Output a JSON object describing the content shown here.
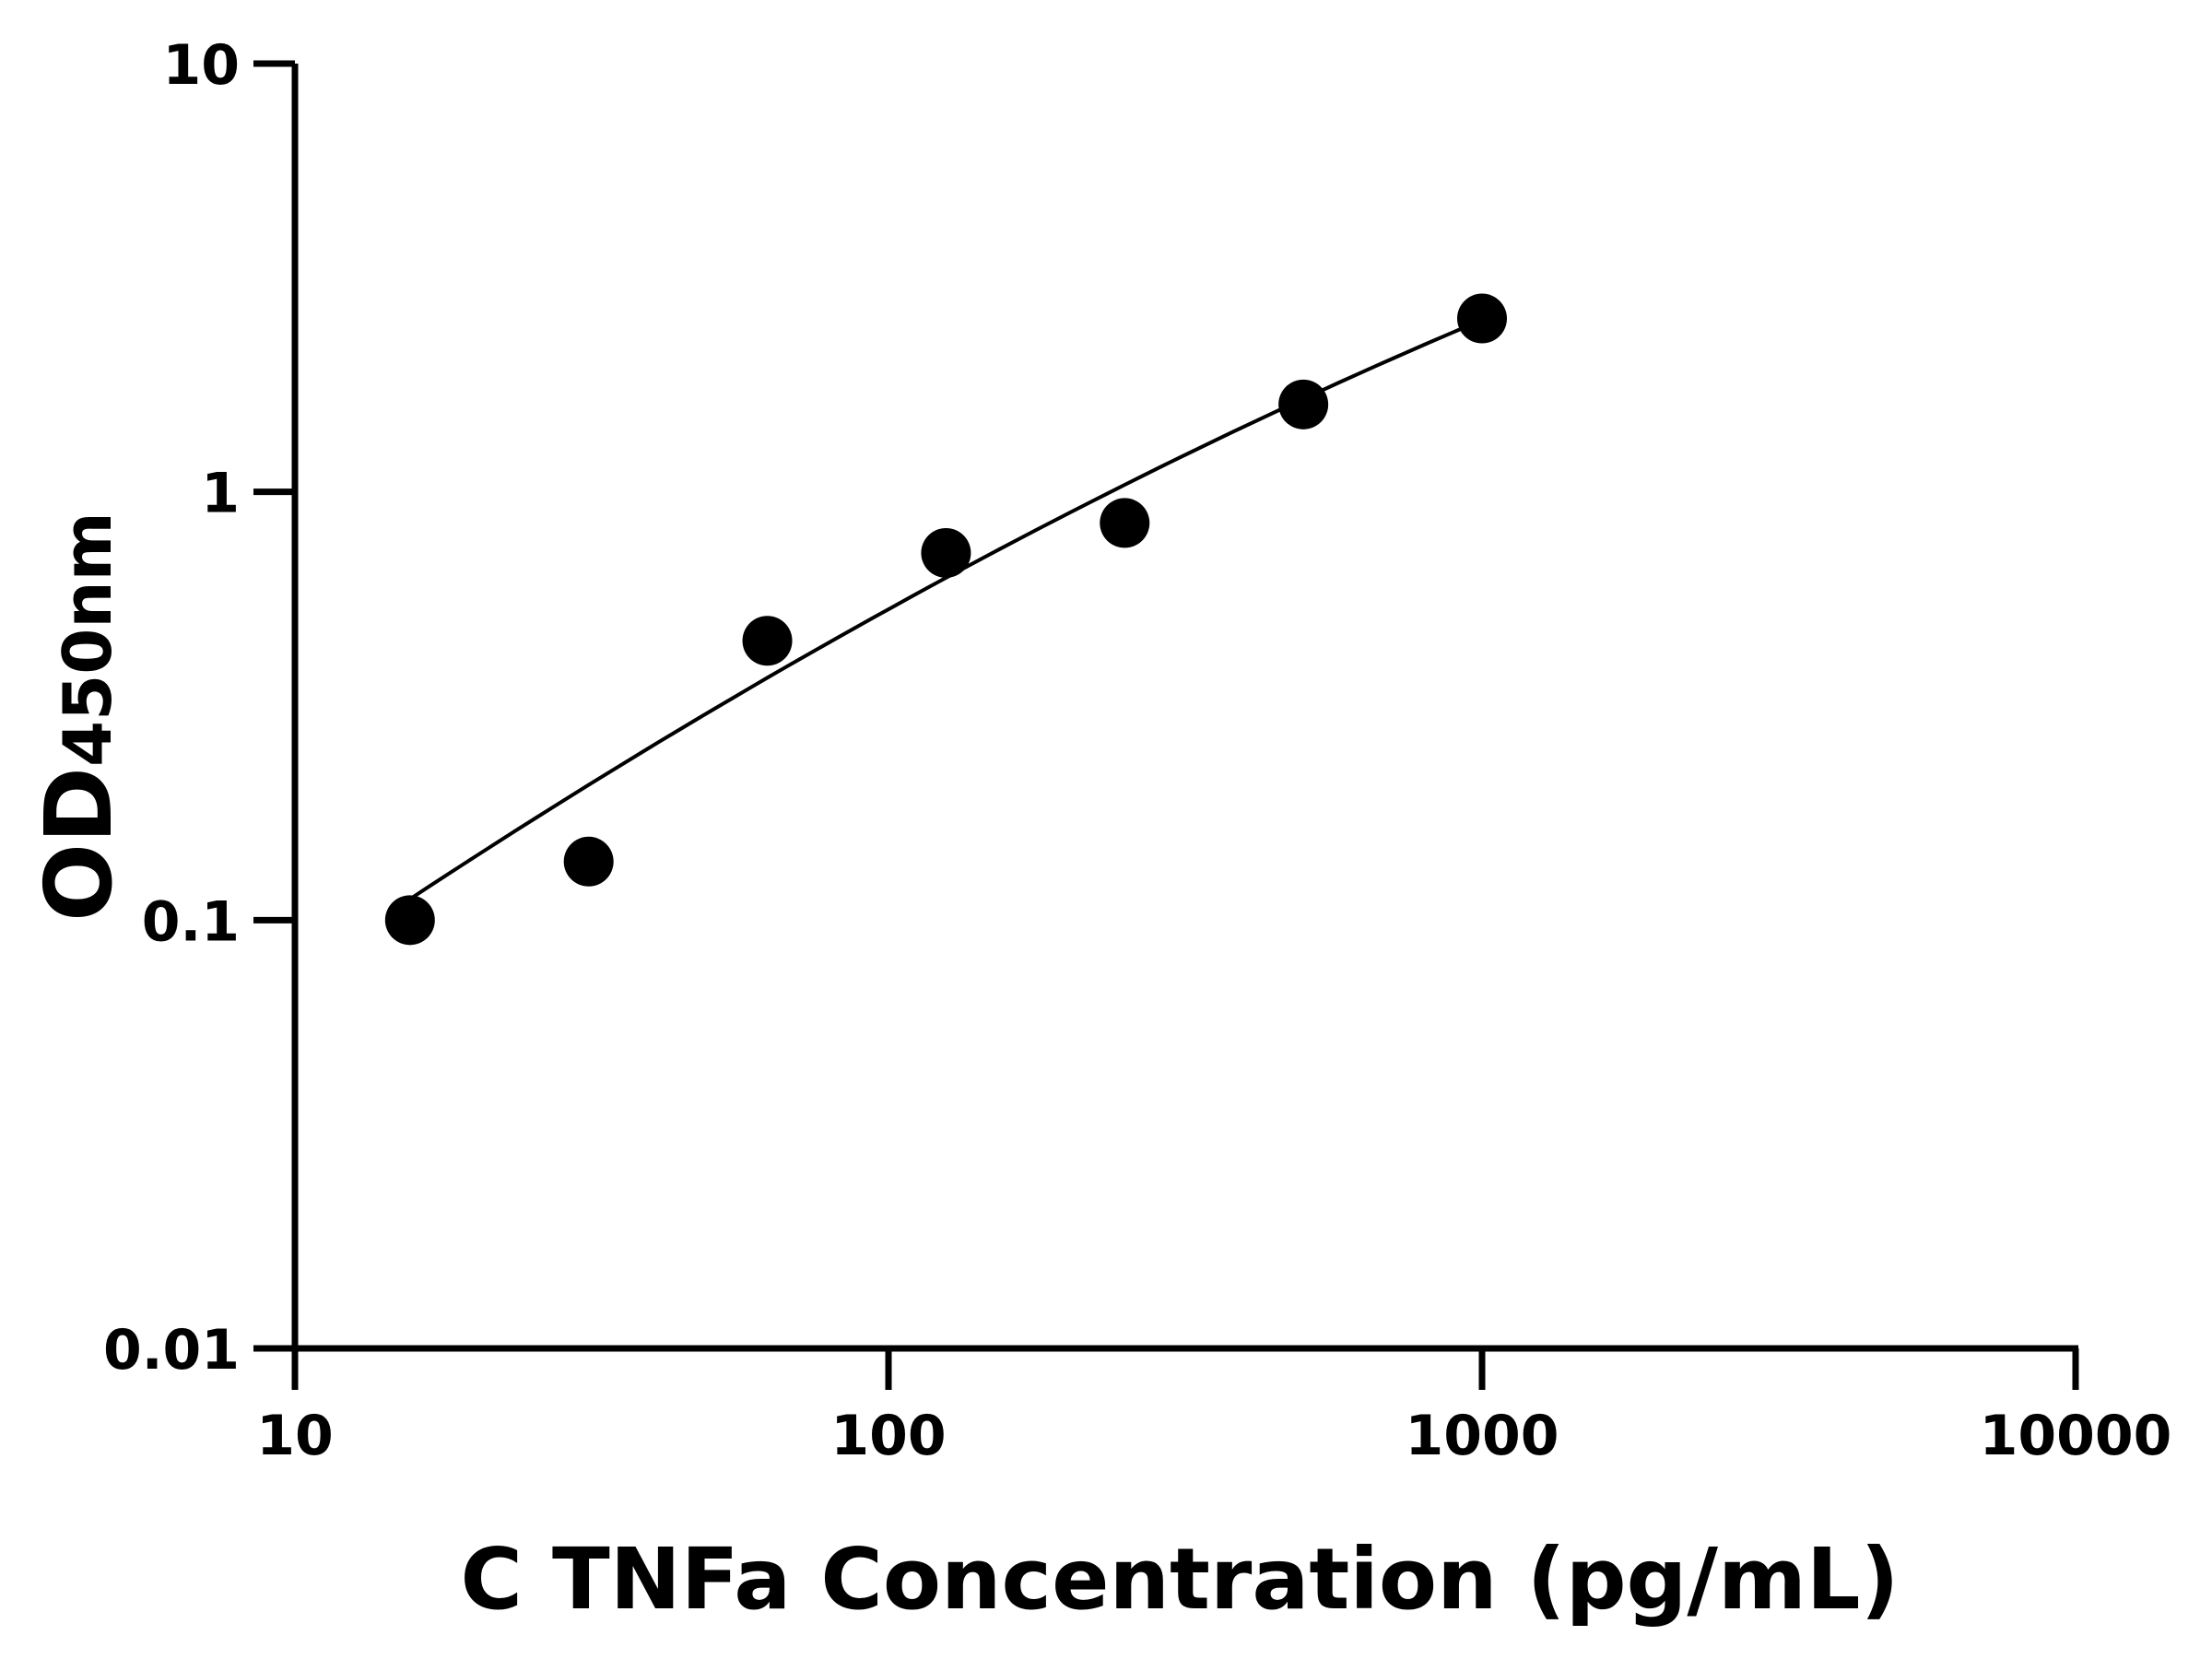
{
  "chart_data": {
    "type": "scatter",
    "xlabel": "C TNFa Concentration (pg/mL)",
    "ylabel_main": "OD",
    "ylabel_sub": "450nm",
    "x_scale": "log",
    "y_scale": "log",
    "xlim": [
      10,
      10000
    ],
    "ylim": [
      0.01,
      10
    ],
    "x_ticks": [
      "10",
      "100",
      "1000",
      "10000"
    ],
    "y_ticks": [
      "0.01",
      "0.1",
      "1",
      "10"
    ],
    "grid": false,
    "points": [
      {
        "x": 15.625,
        "y": 0.1
      },
      {
        "x": 31.25,
        "y": 0.137
      },
      {
        "x": 62.5,
        "y": 0.449
      },
      {
        "x": 125,
        "y": 0.72
      },
      {
        "x": 250,
        "y": 0.846
      },
      {
        "x": 500,
        "y": 1.6
      },
      {
        "x": 1000,
        "y": 2.54
      }
    ],
    "fit_curve": [
      {
        "x": 15.625,
        "y": 0.112
      },
      {
        "x": 125,
        "y": 0.63
      },
      {
        "x": 1000,
        "y": 2.52
      }
    ],
    "colors": {
      "points": "#000000",
      "line": "#000000"
    }
  }
}
